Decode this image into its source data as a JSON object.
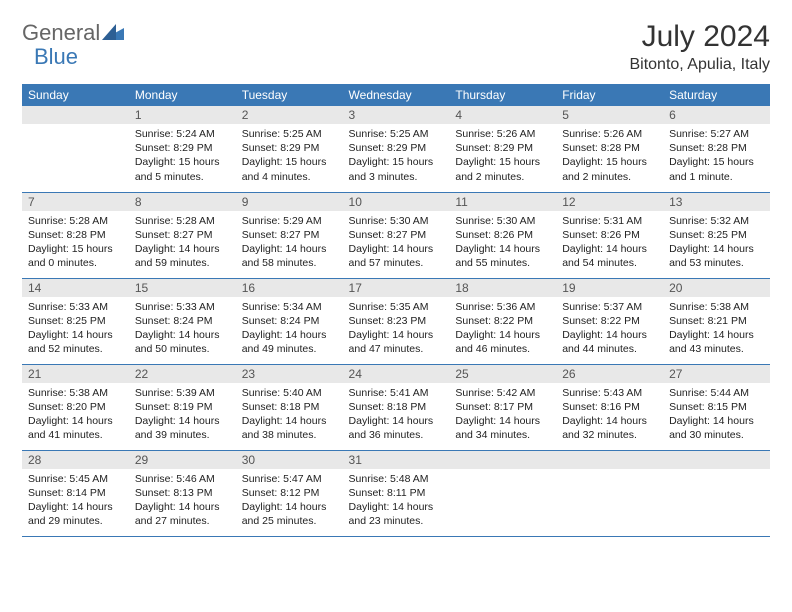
{
  "logo": {
    "part1": "General",
    "part2": "Blue"
  },
  "title": "July 2024",
  "location": "Bitonto, Apulia, Italy",
  "weekdays": [
    "Sunday",
    "Monday",
    "Tuesday",
    "Wednesday",
    "Thursday",
    "Friday",
    "Saturday"
  ],
  "colors": {
    "header_bg": "#3a78b5",
    "header_text": "#ffffff",
    "daynum_bg": "#e8e8e8",
    "rule": "#3a78b5",
    "text": "#222222",
    "logo_gray": "#666666",
    "logo_blue": "#3a78b5"
  },
  "weeks": [
    [
      {
        "n": "",
        "sr": "",
        "ss": "",
        "dl": ""
      },
      {
        "n": "1",
        "sr": "Sunrise: 5:24 AM",
        "ss": "Sunset: 8:29 PM",
        "dl": "Daylight: 15 hours and 5 minutes."
      },
      {
        "n": "2",
        "sr": "Sunrise: 5:25 AM",
        "ss": "Sunset: 8:29 PM",
        "dl": "Daylight: 15 hours and 4 minutes."
      },
      {
        "n": "3",
        "sr": "Sunrise: 5:25 AM",
        "ss": "Sunset: 8:29 PM",
        "dl": "Daylight: 15 hours and 3 minutes."
      },
      {
        "n": "4",
        "sr": "Sunrise: 5:26 AM",
        "ss": "Sunset: 8:29 PM",
        "dl": "Daylight: 15 hours and 2 minutes."
      },
      {
        "n": "5",
        "sr": "Sunrise: 5:26 AM",
        "ss": "Sunset: 8:28 PM",
        "dl": "Daylight: 15 hours and 2 minutes."
      },
      {
        "n": "6",
        "sr": "Sunrise: 5:27 AM",
        "ss": "Sunset: 8:28 PM",
        "dl": "Daylight: 15 hours and 1 minute."
      }
    ],
    [
      {
        "n": "7",
        "sr": "Sunrise: 5:28 AM",
        "ss": "Sunset: 8:28 PM",
        "dl": "Daylight: 15 hours and 0 minutes."
      },
      {
        "n": "8",
        "sr": "Sunrise: 5:28 AM",
        "ss": "Sunset: 8:27 PM",
        "dl": "Daylight: 14 hours and 59 minutes."
      },
      {
        "n": "9",
        "sr": "Sunrise: 5:29 AM",
        "ss": "Sunset: 8:27 PM",
        "dl": "Daylight: 14 hours and 58 minutes."
      },
      {
        "n": "10",
        "sr": "Sunrise: 5:30 AM",
        "ss": "Sunset: 8:27 PM",
        "dl": "Daylight: 14 hours and 57 minutes."
      },
      {
        "n": "11",
        "sr": "Sunrise: 5:30 AM",
        "ss": "Sunset: 8:26 PM",
        "dl": "Daylight: 14 hours and 55 minutes."
      },
      {
        "n": "12",
        "sr": "Sunrise: 5:31 AM",
        "ss": "Sunset: 8:26 PM",
        "dl": "Daylight: 14 hours and 54 minutes."
      },
      {
        "n": "13",
        "sr": "Sunrise: 5:32 AM",
        "ss": "Sunset: 8:25 PM",
        "dl": "Daylight: 14 hours and 53 minutes."
      }
    ],
    [
      {
        "n": "14",
        "sr": "Sunrise: 5:33 AM",
        "ss": "Sunset: 8:25 PM",
        "dl": "Daylight: 14 hours and 52 minutes."
      },
      {
        "n": "15",
        "sr": "Sunrise: 5:33 AM",
        "ss": "Sunset: 8:24 PM",
        "dl": "Daylight: 14 hours and 50 minutes."
      },
      {
        "n": "16",
        "sr": "Sunrise: 5:34 AM",
        "ss": "Sunset: 8:24 PM",
        "dl": "Daylight: 14 hours and 49 minutes."
      },
      {
        "n": "17",
        "sr": "Sunrise: 5:35 AM",
        "ss": "Sunset: 8:23 PM",
        "dl": "Daylight: 14 hours and 47 minutes."
      },
      {
        "n": "18",
        "sr": "Sunrise: 5:36 AM",
        "ss": "Sunset: 8:22 PM",
        "dl": "Daylight: 14 hours and 46 minutes."
      },
      {
        "n": "19",
        "sr": "Sunrise: 5:37 AM",
        "ss": "Sunset: 8:22 PM",
        "dl": "Daylight: 14 hours and 44 minutes."
      },
      {
        "n": "20",
        "sr": "Sunrise: 5:38 AM",
        "ss": "Sunset: 8:21 PM",
        "dl": "Daylight: 14 hours and 43 minutes."
      }
    ],
    [
      {
        "n": "21",
        "sr": "Sunrise: 5:38 AM",
        "ss": "Sunset: 8:20 PM",
        "dl": "Daylight: 14 hours and 41 minutes."
      },
      {
        "n": "22",
        "sr": "Sunrise: 5:39 AM",
        "ss": "Sunset: 8:19 PM",
        "dl": "Daylight: 14 hours and 39 minutes."
      },
      {
        "n": "23",
        "sr": "Sunrise: 5:40 AM",
        "ss": "Sunset: 8:18 PM",
        "dl": "Daylight: 14 hours and 38 minutes."
      },
      {
        "n": "24",
        "sr": "Sunrise: 5:41 AM",
        "ss": "Sunset: 8:18 PM",
        "dl": "Daylight: 14 hours and 36 minutes."
      },
      {
        "n": "25",
        "sr": "Sunrise: 5:42 AM",
        "ss": "Sunset: 8:17 PM",
        "dl": "Daylight: 14 hours and 34 minutes."
      },
      {
        "n": "26",
        "sr": "Sunrise: 5:43 AM",
        "ss": "Sunset: 8:16 PM",
        "dl": "Daylight: 14 hours and 32 minutes."
      },
      {
        "n": "27",
        "sr": "Sunrise: 5:44 AM",
        "ss": "Sunset: 8:15 PM",
        "dl": "Daylight: 14 hours and 30 minutes."
      }
    ],
    [
      {
        "n": "28",
        "sr": "Sunrise: 5:45 AM",
        "ss": "Sunset: 8:14 PM",
        "dl": "Daylight: 14 hours and 29 minutes."
      },
      {
        "n": "29",
        "sr": "Sunrise: 5:46 AM",
        "ss": "Sunset: 8:13 PM",
        "dl": "Daylight: 14 hours and 27 minutes."
      },
      {
        "n": "30",
        "sr": "Sunrise: 5:47 AM",
        "ss": "Sunset: 8:12 PM",
        "dl": "Daylight: 14 hours and 25 minutes."
      },
      {
        "n": "31",
        "sr": "Sunrise: 5:48 AM",
        "ss": "Sunset: 8:11 PM",
        "dl": "Daylight: 14 hours and 23 minutes."
      },
      {
        "n": "",
        "sr": "",
        "ss": "",
        "dl": ""
      },
      {
        "n": "",
        "sr": "",
        "ss": "",
        "dl": ""
      },
      {
        "n": "",
        "sr": "",
        "ss": "",
        "dl": ""
      }
    ]
  ]
}
